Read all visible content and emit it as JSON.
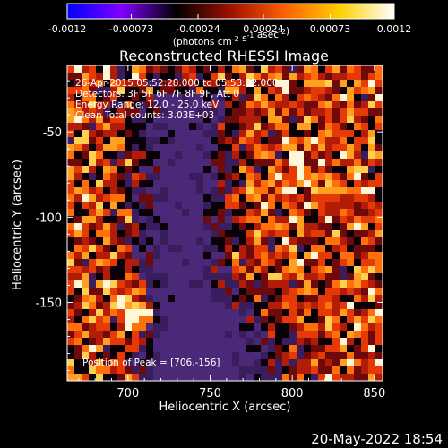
{
  "chart_data": {
    "type": "heatmap",
    "title": "Reconstructed RHESSI Image",
    "xlabel": "Heliocentric X (arcsec)",
    "ylabel": "Heliocentric Y (arcsec)",
    "xlim": [
      663,
      855
    ],
    "ylim": [
      -196,
      -11
    ],
    "x_ticks": [
      700,
      750,
      800,
      850
    ],
    "y_ticks": [
      -50,
      -100,
      -150
    ],
    "grid": false,
    "colorbar": {
      "ticks": [
        "-0.0012",
        "-0.00073",
        "-0.00024",
        "0.00024",
        "0.00073",
        "0.0012"
      ],
      "tick_values": [
        -0.0012,
        -0.00073,
        -0.00024,
        0.00024,
        0.00073,
        0.0012
      ],
      "range": [
        -0.0012,
        0.0012
      ],
      "unit_label": "(photons cm-2 s-1 asec-2)",
      "colors": [
        "#0000ff",
        "#8000ff",
        "#000000",
        "#a01000",
        "#ff6000",
        "#ffd000",
        "#ffffff"
      ]
    },
    "annotations": [
      "26-Apr-2015 05:52:28.000 to 05:53:32.000",
      "Detectors: 3F 5F 6F 7F 8F 9F, Att 0",
      "Energy Range: 12.0 - 25.0 keV",
      "Clean     Total counts: 3.03E+03",
      "Position of Peak = [706,-156]"
    ],
    "peak": {
      "x": 706,
      "y": -156
    },
    "background_colors": [
      "#3b1a5e",
      "#000000"
    ]
  },
  "footer": {
    "timestamp": "20-May-2022 18:54"
  }
}
